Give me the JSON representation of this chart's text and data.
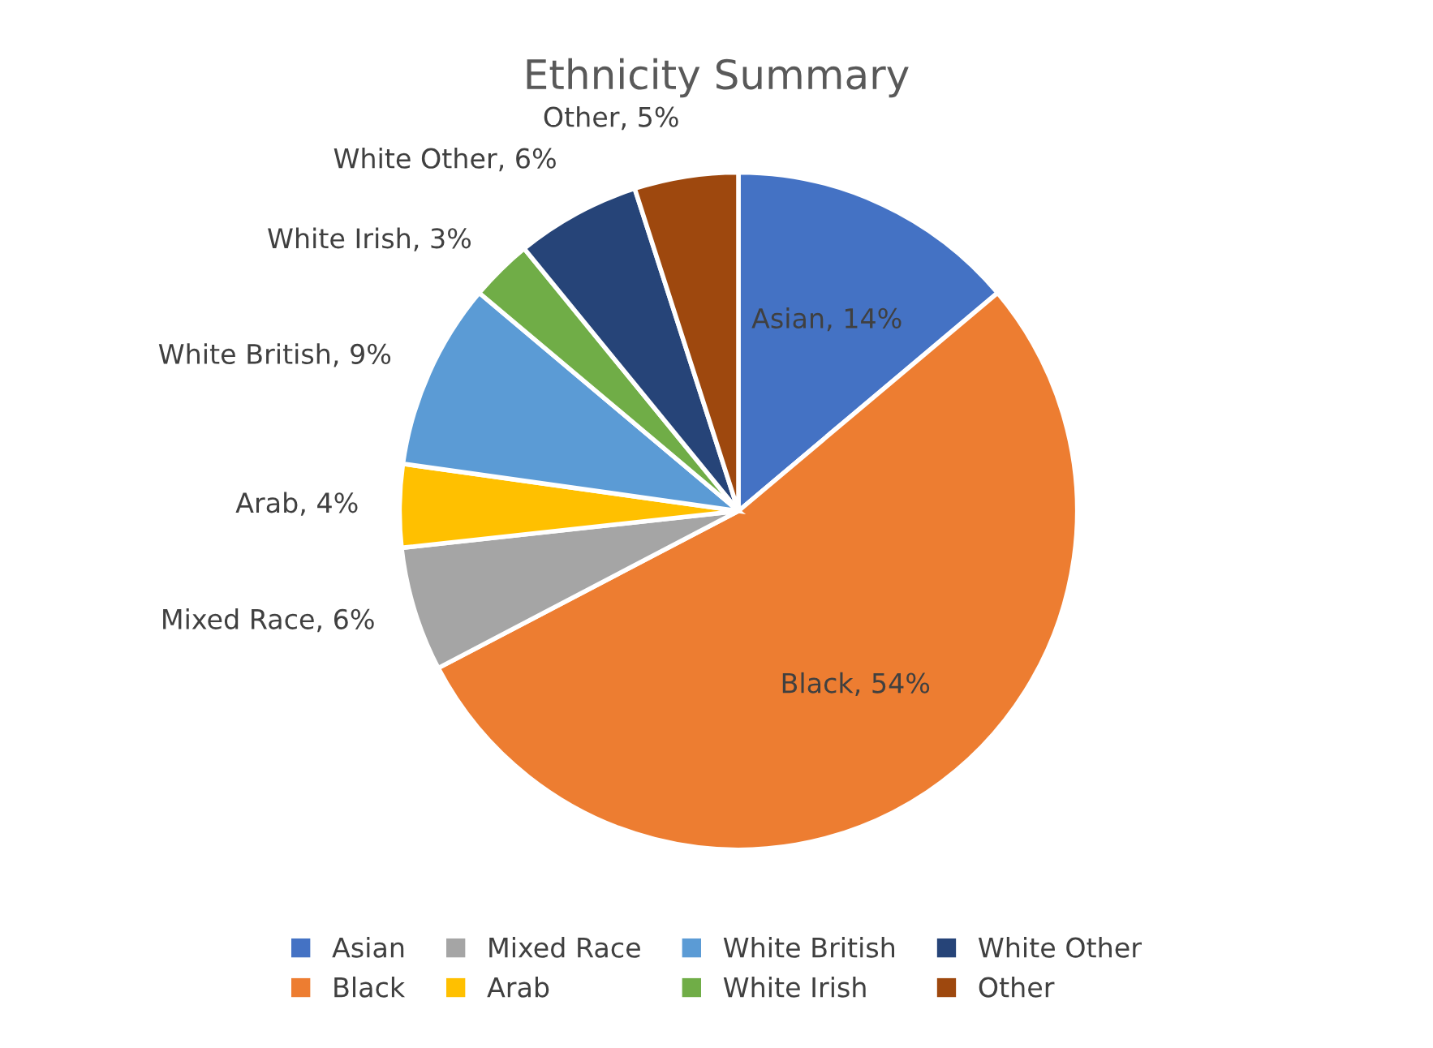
{
  "chart_data": {
    "type": "pie",
    "title": "Ethnicity Summary",
    "categories": [
      "Asian",
      "Black",
      "Mixed Race",
      "Arab",
      "White British",
      "White Irish",
      "White Other",
      "Other"
    ],
    "values": [
      14,
      54,
      6,
      4,
      9,
      3,
      6,
      5
    ],
    "colors": [
      "#4472c4",
      "#ed7d31",
      "#a5a5a5",
      "#ffc000",
      "#5b9bd5",
      "#70ad47",
      "#264478",
      "#9e480e"
    ],
    "value_labels": [
      "Asian, 14%",
      "Black, 54%",
      "Mixed Race, 6%",
      "Arab, 4%",
      "White British, 9%",
      "White Irish, 3%",
      "White Other, 6%",
      "Other, 5%"
    ],
    "legend": "bottom"
  }
}
